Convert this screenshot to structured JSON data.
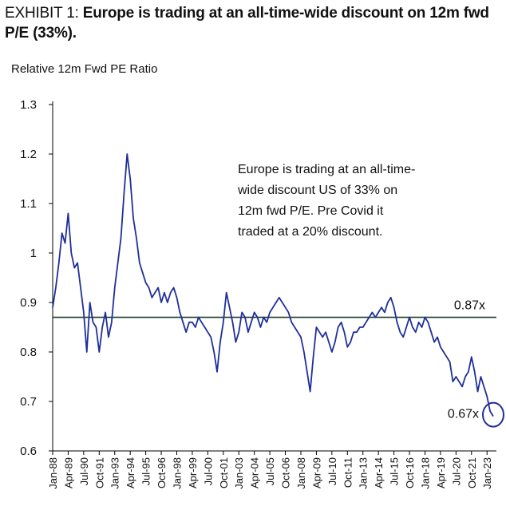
{
  "chart_data": {
    "type": "line",
    "title_prefix": "EXHIBIT 1:",
    "title": "Europe is trading at an all-time-wide discount on 12m fwd P/E (33%).",
    "subtitle": "Relative 12m Fwd PE Ratio",
    "annotation_lines": [
      "Europe is trading at an all-time-",
      "wide discount US of 33% on",
      "12m fwd P/E. Pre Covid it",
      "traded at a 20% discount."
    ],
    "reference_line": {
      "value": 0.87,
      "label": "0.87x"
    },
    "end_marker": {
      "value": 0.67,
      "label": "0.67x"
    },
    "x": [
      "Jan-88",
      "Apr-88",
      "Jul-88",
      "Oct-88",
      "Jan-89",
      "Apr-89",
      "Jul-89",
      "Oct-89",
      "Jan-90",
      "Apr-90",
      "Jul-90",
      "Oct-90",
      "Jan-91",
      "Apr-91",
      "Jul-91",
      "Oct-91",
      "Jan-92",
      "Apr-92",
      "Jul-92",
      "Oct-92",
      "Jan-93",
      "Apr-93",
      "Jul-93",
      "Oct-93",
      "Jan-94",
      "Apr-94",
      "Jul-94",
      "Oct-94",
      "Jan-95",
      "Apr-95",
      "Jul-95",
      "Oct-95",
      "Jan-96",
      "Apr-96",
      "Jul-96",
      "Oct-96",
      "Jan-97",
      "Apr-97",
      "Jul-97",
      "Oct-97",
      "Jan-98",
      "Apr-98",
      "Jul-98",
      "Oct-98",
      "Jan-99",
      "Apr-99",
      "Jul-99",
      "Oct-99",
      "Jan-00",
      "Apr-00",
      "Jul-00",
      "Oct-00",
      "Jan-01",
      "Apr-01",
      "Jul-01",
      "Oct-01",
      "Jan-02",
      "Apr-02",
      "Jul-02",
      "Oct-02",
      "Jan-03",
      "Apr-03",
      "Jul-03",
      "Oct-03",
      "Jan-04",
      "Apr-04",
      "Jul-04",
      "Oct-04",
      "Jan-05",
      "Apr-05",
      "Jul-05",
      "Oct-05",
      "Jan-06",
      "Apr-06",
      "Jul-06",
      "Oct-06",
      "Jan-07",
      "Apr-07",
      "Jul-07",
      "Oct-07",
      "Jan-08",
      "Apr-08",
      "Jul-08",
      "Oct-08",
      "Jan-09",
      "Apr-09",
      "Jul-09",
      "Oct-09",
      "Jan-10",
      "Apr-10",
      "Jul-10",
      "Oct-10",
      "Jan-11",
      "Apr-11",
      "Jul-11",
      "Oct-11",
      "Jan-12",
      "Apr-12",
      "Jul-12",
      "Oct-12",
      "Jan-13",
      "Apr-13",
      "Jul-13",
      "Oct-13",
      "Jan-14",
      "Apr-14",
      "Jul-14",
      "Oct-14",
      "Jan-15",
      "Apr-15",
      "Jul-15",
      "Oct-15",
      "Jan-16",
      "Apr-16",
      "Jul-16",
      "Oct-16",
      "Jan-17",
      "Apr-17",
      "Jul-17",
      "Oct-17",
      "Jan-18",
      "Apr-18",
      "Jul-18",
      "Oct-18",
      "Jan-19",
      "Apr-19",
      "Jul-19",
      "Oct-19",
      "Jan-20",
      "Apr-20",
      "Jul-20",
      "Oct-20",
      "Jan-21",
      "Apr-21",
      "Jul-21",
      "Oct-21",
      "Jan-22",
      "Apr-22",
      "Jul-22",
      "Oct-22",
      "Jan-23",
      "Apr-23",
      "Jul-23"
    ],
    "xticks": [
      "Jan-88",
      "Apr-89",
      "Jul-90",
      "Oct-91",
      "Jan-93",
      "Apr-94",
      "Jul-95",
      "Oct-96",
      "Jan-98",
      "Apr-99",
      "Jul-00",
      "Oct-01",
      "Jan-03",
      "Apr-04",
      "Jul-05",
      "Oct-06",
      "Jan-08",
      "Apr-09",
      "Jul-10",
      "Oct-11",
      "Jan-13",
      "Apr-14",
      "Jul-15",
      "Oct-16",
      "Jan-18",
      "Apr-19",
      "Jul-20",
      "Oct-21",
      "Jan-23"
    ],
    "series": [
      {
        "name": "Relative 12m Fwd PE Ratio",
        "color": "#1f2f9a",
        "values": [
          0.89,
          0.93,
          0.98,
          1.04,
          1.02,
          1.08,
          1.0,
          0.97,
          0.98,
          0.93,
          0.88,
          0.8,
          0.9,
          0.86,
          0.85,
          0.8,
          0.85,
          0.88,
          0.83,
          0.86,
          0.93,
          0.98,
          1.03,
          1.12,
          1.2,
          1.15,
          1.07,
          1.03,
          0.98,
          0.96,
          0.94,
          0.93,
          0.91,
          0.92,
          0.93,
          0.9,
          0.92,
          0.9,
          0.92,
          0.93,
          0.91,
          0.88,
          0.86,
          0.84,
          0.86,
          0.86,
          0.85,
          0.87,
          0.86,
          0.85,
          0.84,
          0.83,
          0.8,
          0.76,
          0.82,
          0.86,
          0.92,
          0.89,
          0.86,
          0.82,
          0.84,
          0.88,
          0.87,
          0.84,
          0.86,
          0.88,
          0.87,
          0.85,
          0.87,
          0.86,
          0.88,
          0.89,
          0.9,
          0.91,
          0.9,
          0.89,
          0.88,
          0.86,
          0.85,
          0.84,
          0.83,
          0.8,
          0.76,
          0.72,
          0.79,
          0.85,
          0.84,
          0.83,
          0.84,
          0.82,
          0.8,
          0.82,
          0.85,
          0.86,
          0.84,
          0.81,
          0.82,
          0.84,
          0.84,
          0.85,
          0.85,
          0.86,
          0.87,
          0.88,
          0.87,
          0.88,
          0.89,
          0.88,
          0.9,
          0.91,
          0.89,
          0.86,
          0.84,
          0.83,
          0.85,
          0.87,
          0.85,
          0.84,
          0.86,
          0.85,
          0.87,
          0.86,
          0.84,
          0.82,
          0.83,
          0.81,
          0.8,
          0.79,
          0.78,
          0.74,
          0.75,
          0.74,
          0.73,
          0.75,
          0.76,
          0.79,
          0.76,
          0.72,
          0.75,
          0.73,
          0.71,
          0.68,
          0.67
        ]
      }
    ],
    "ylim": [
      0.6,
      1.3
    ],
    "yticks": [
      0.6,
      0.7,
      0.8,
      0.9,
      1,
      1.1,
      1.2,
      1.3
    ],
    "reference_color": "#1d3b2a"
  }
}
